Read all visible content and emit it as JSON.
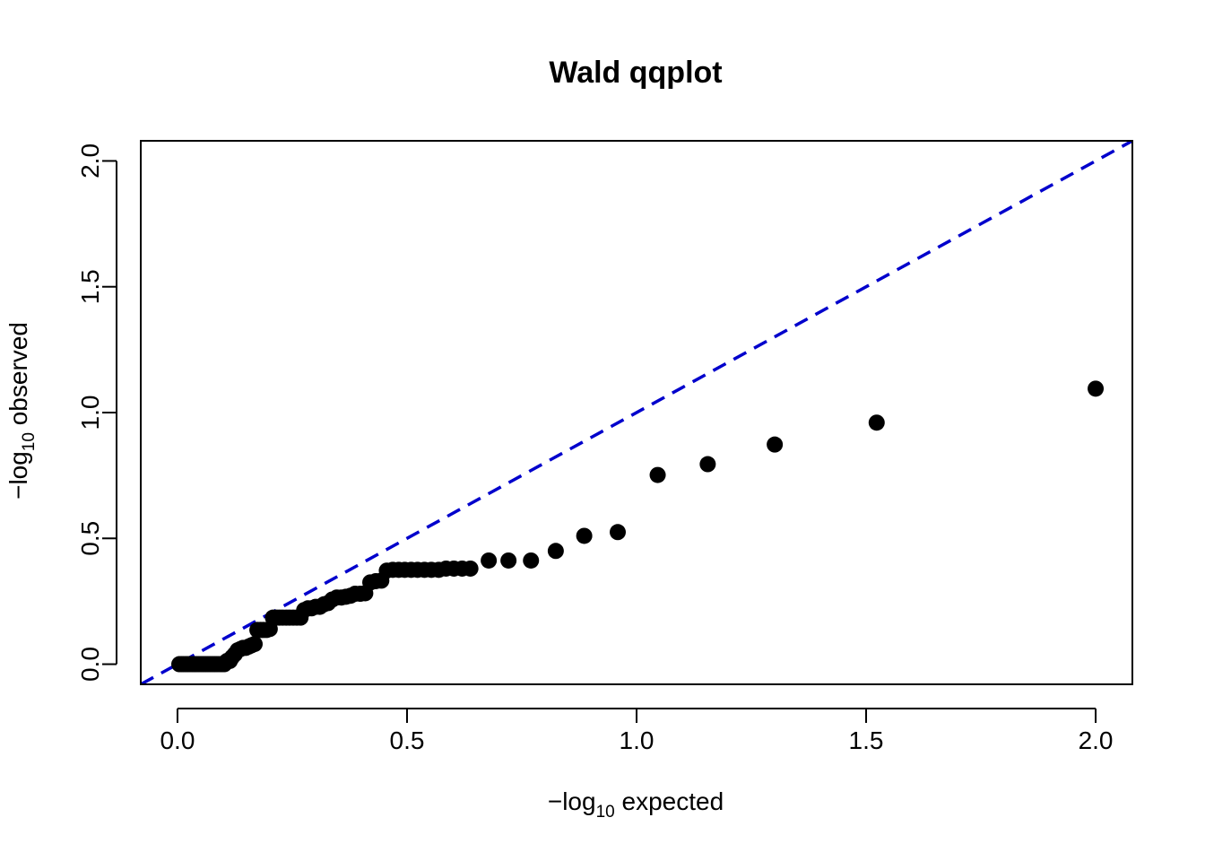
{
  "chart_data": {
    "type": "scatter",
    "title": "Wald qqplot",
    "xlabel": {
      "prefix": "−log",
      "sub": "10",
      "suffix": " expected"
    },
    "ylabel": {
      "prefix": "−log",
      "sub": "10",
      "suffix": " observed"
    },
    "xlim": [
      -0.08,
      2.08
    ],
    "ylim": [
      -0.08,
      2.08
    ],
    "x_ticks": [
      0.0,
      0.5,
      1.0,
      1.5,
      2.0
    ],
    "y_ticks": [
      0.0,
      0.5,
      1.0,
      1.5,
      2.0
    ],
    "x_tick_labels": [
      "0.0",
      "0.5",
      "1.0",
      "1.5",
      "2.0"
    ],
    "y_tick_labels": [
      "0.0",
      "0.5",
      "1.0",
      "1.5",
      "2.0"
    ],
    "point_color": "#000000",
    "reference_line": {
      "slope": 1,
      "intercept": 0,
      "color": "#0000CC",
      "style": "dashed"
    },
    "points": [
      [
        0.004,
        0.0
      ],
      [
        0.009,
        0.0
      ],
      [
        0.013,
        0.0
      ],
      [
        0.018,
        0.0
      ],
      [
        0.022,
        0.0
      ],
      [
        0.027,
        0.0
      ],
      [
        0.032,
        0.0
      ],
      [
        0.037,
        0.0
      ],
      [
        0.041,
        0.0
      ],
      [
        0.046,
        0.0
      ],
      [
        0.051,
        0.0
      ],
      [
        0.056,
        0.0
      ],
      [
        0.061,
        0.0
      ],
      [
        0.066,
        0.0
      ],
      [
        0.071,
        0.0
      ],
      [
        0.076,
        0.0
      ],
      [
        0.081,
        0.0
      ],
      [
        0.086,
        0.0
      ],
      [
        0.092,
        0.0
      ],
      [
        0.097,
        0.0
      ],
      [
        0.102,
        0.0
      ],
      [
        0.108,
        0.013
      ],
      [
        0.114,
        0.013
      ],
      [
        0.119,
        0.028
      ],
      [
        0.125,
        0.04
      ],
      [
        0.131,
        0.055
      ],
      [
        0.137,
        0.06
      ],
      [
        0.143,
        0.065
      ],
      [
        0.149,
        0.065
      ],
      [
        0.155,
        0.07
      ],
      [
        0.161,
        0.075
      ],
      [
        0.168,
        0.08
      ],
      [
        0.174,
        0.136
      ],
      [
        0.181,
        0.136
      ],
      [
        0.187,
        0.136
      ],
      [
        0.194,
        0.136
      ],
      [
        0.201,
        0.14
      ],
      [
        0.208,
        0.185
      ],
      [
        0.215,
        0.185
      ],
      [
        0.222,
        0.185
      ],
      [
        0.229,
        0.185
      ],
      [
        0.237,
        0.185
      ],
      [
        0.244,
        0.185
      ],
      [
        0.252,
        0.185
      ],
      [
        0.26,
        0.185
      ],
      [
        0.268,
        0.185
      ],
      [
        0.276,
        0.215
      ],
      [
        0.284,
        0.222
      ],
      [
        0.292,
        0.222
      ],
      [
        0.301,
        0.228
      ],
      [
        0.31,
        0.228
      ],
      [
        0.319,
        0.238
      ],
      [
        0.328,
        0.243
      ],
      [
        0.337,
        0.257
      ],
      [
        0.347,
        0.265
      ],
      [
        0.357,
        0.265
      ],
      [
        0.367,
        0.268
      ],
      [
        0.377,
        0.272
      ],
      [
        0.387,
        0.28
      ],
      [
        0.398,
        0.28
      ],
      [
        0.409,
        0.282
      ],
      [
        0.42,
        0.325
      ],
      [
        0.432,
        0.33
      ],
      [
        0.444,
        0.332
      ],
      [
        0.456,
        0.372
      ],
      [
        0.469,
        0.375
      ],
      [
        0.482,
        0.375
      ],
      [
        0.495,
        0.375
      ],
      [
        0.509,
        0.375
      ],
      [
        0.523,
        0.375
      ],
      [
        0.538,
        0.375
      ],
      [
        0.553,
        0.375
      ],
      [
        0.569,
        0.375
      ],
      [
        0.585,
        0.38
      ],
      [
        0.602,
        0.38
      ],
      [
        0.62,
        0.38
      ],
      [
        0.638,
        0.38
      ],
      [
        0.678,
        0.412
      ],
      [
        0.721,
        0.412
      ],
      [
        0.77,
        0.412
      ],
      [
        0.824,
        0.45
      ],
      [
        0.886,
        0.51
      ],
      [
        0.959,
        0.525
      ],
      [
        1.046,
        0.752
      ],
      [
        1.155,
        0.795
      ],
      [
        1.301,
        0.873
      ],
      [
        1.523,
        0.96
      ],
      [
        2.0,
        1.095
      ]
    ]
  }
}
